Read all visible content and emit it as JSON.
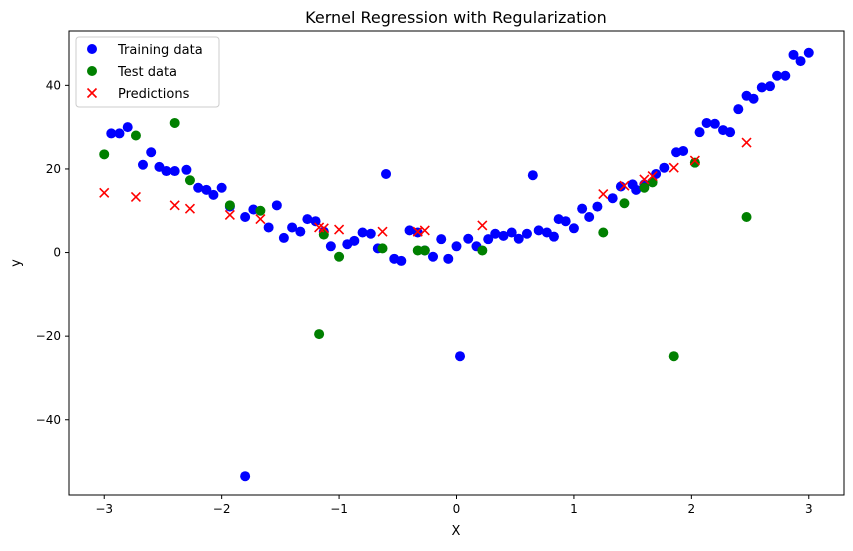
{
  "chart_data": {
    "type": "scatter",
    "title": "Kernel Regression with Regularization",
    "xlabel": "X",
    "ylabel": "y",
    "xlim": [
      -3.3,
      3.3
    ],
    "ylim": [
      -58,
      53
    ],
    "xticks": [
      -3,
      -2,
      -1,
      0,
      1,
      2,
      3
    ],
    "yticks": [
      -40,
      -20,
      0,
      20,
      40
    ],
    "xtick_labels": [
      "−3",
      "−2",
      "−1",
      "0",
      "1",
      "2",
      "3"
    ],
    "ytick_labels": [
      "−40",
      "−20",
      "0",
      "20",
      "40"
    ],
    "grid": false,
    "legend_position": "top-left",
    "series": [
      {
        "name": "Training data",
        "marker": "circle",
        "color": "#0000ff",
        "points": [
          [
            -2.94,
            28.5
          ],
          [
            -2.87,
            28.5
          ],
          [
            -2.8,
            30.0
          ],
          [
            -2.67,
            21.0
          ],
          [
            -2.6,
            24.0
          ],
          [
            -2.53,
            20.5
          ],
          [
            -2.47,
            19.5
          ],
          [
            -2.4,
            19.5
          ],
          [
            -2.3,
            19.8
          ],
          [
            -2.2,
            15.5
          ],
          [
            -2.13,
            15.0
          ],
          [
            -2.07,
            13.8
          ],
          [
            -2.0,
            15.5
          ],
          [
            -1.93,
            11.0
          ],
          [
            -1.8,
            8.5
          ],
          [
            -1.8,
            -53.5
          ],
          [
            -1.73,
            10.3
          ],
          [
            -1.6,
            6.0
          ],
          [
            -1.53,
            11.3
          ],
          [
            -1.47,
            3.5
          ],
          [
            -1.4,
            6.0
          ],
          [
            -1.33,
            5.0
          ],
          [
            -1.27,
            8.0
          ],
          [
            -1.2,
            7.5
          ],
          [
            -1.13,
            5.0
          ],
          [
            -1.07,
            1.5
          ],
          [
            -0.93,
            2.0
          ],
          [
            -0.87,
            2.8
          ],
          [
            -0.8,
            4.8
          ],
          [
            -0.73,
            4.5
          ],
          [
            -0.67,
            1.0
          ],
          [
            -0.6,
            18.8
          ],
          [
            -0.53,
            -1.5
          ],
          [
            -0.47,
            -2.0
          ],
          [
            -0.4,
            5.3
          ],
          [
            -0.33,
            4.8
          ],
          [
            -0.27,
            0.5
          ],
          [
            -0.2,
            -1.0
          ],
          [
            -0.13,
            3.2
          ],
          [
            -0.07,
            -1.5
          ],
          [
            0.0,
            1.5
          ],
          [
            0.03,
            -24.8
          ],
          [
            0.1,
            3.3
          ],
          [
            0.17,
            1.5
          ],
          [
            0.27,
            3.2
          ],
          [
            0.33,
            4.5
          ],
          [
            0.4,
            4.0
          ],
          [
            0.47,
            4.8
          ],
          [
            0.53,
            3.3
          ],
          [
            0.6,
            4.5
          ],
          [
            0.65,
            18.5
          ],
          [
            0.7,
            5.3
          ],
          [
            0.77,
            4.8
          ],
          [
            0.83,
            3.8
          ],
          [
            0.87,
            8.0
          ],
          [
            0.93,
            7.5
          ],
          [
            1.0,
            5.8
          ],
          [
            1.07,
            10.5
          ],
          [
            1.13,
            8.5
          ],
          [
            1.2,
            11.0
          ],
          [
            1.33,
            13.0
          ],
          [
            1.4,
            15.8
          ],
          [
            1.5,
            16.3
          ],
          [
            1.53,
            15.0
          ],
          [
            1.6,
            16.3
          ],
          [
            1.7,
            18.8
          ],
          [
            1.77,
            20.3
          ],
          [
            1.87,
            24.0
          ],
          [
            1.93,
            24.3
          ],
          [
            2.07,
            28.8
          ],
          [
            2.13,
            31.0
          ],
          [
            2.2,
            30.8
          ],
          [
            2.27,
            29.3
          ],
          [
            2.33,
            28.8
          ],
          [
            2.4,
            34.3
          ],
          [
            2.47,
            37.5
          ],
          [
            2.53,
            36.8
          ],
          [
            2.6,
            39.5
          ],
          [
            2.67,
            39.8
          ],
          [
            2.73,
            42.3
          ],
          [
            2.8,
            42.3
          ],
          [
            2.87,
            47.3
          ],
          [
            2.93,
            45.8
          ],
          [
            3.0,
            47.8
          ]
        ]
      },
      {
        "name": "Test data",
        "marker": "circle",
        "color": "#008000",
        "points": [
          [
            -3.0,
            23.5
          ],
          [
            -2.73,
            28.0
          ],
          [
            -2.4,
            31.0
          ],
          [
            -2.27,
            17.3
          ],
          [
            -1.93,
            11.3
          ],
          [
            -1.67,
            10.0
          ],
          [
            -1.17,
            -19.5
          ],
          [
            -1.13,
            4.3
          ],
          [
            -1.0,
            -1.0
          ],
          [
            -0.63,
            1.0
          ],
          [
            -0.33,
            0.5
          ],
          [
            -0.27,
            0.5
          ],
          [
            0.22,
            0.5
          ],
          [
            1.25,
            4.8
          ],
          [
            1.43,
            11.8
          ],
          [
            1.6,
            15.5
          ],
          [
            1.67,
            16.8
          ],
          [
            1.85,
            -24.8
          ],
          [
            2.03,
            21.5
          ],
          [
            2.47,
            8.5
          ]
        ]
      },
      {
        "name": "Predictions",
        "marker": "x",
        "color": "#ff0000",
        "points": [
          [
            -3.0,
            14.3
          ],
          [
            -2.73,
            13.3
          ],
          [
            -2.4,
            11.3
          ],
          [
            -2.27,
            10.5
          ],
          [
            -1.93,
            9.0
          ],
          [
            -1.67,
            8.0
          ],
          [
            -1.17,
            6.0
          ],
          [
            -1.13,
            5.8
          ],
          [
            -1.0,
            5.5
          ],
          [
            -0.63,
            5.0
          ],
          [
            -0.33,
            5.0
          ],
          [
            -0.27,
            5.3
          ],
          [
            0.22,
            6.5
          ],
          [
            1.25,
            14.0
          ],
          [
            1.43,
            16.0
          ],
          [
            1.6,
            17.5
          ],
          [
            1.67,
            18.3
          ],
          [
            1.85,
            20.3
          ],
          [
            2.03,
            22.0
          ],
          [
            2.47,
            26.3
          ]
        ]
      }
    ]
  }
}
